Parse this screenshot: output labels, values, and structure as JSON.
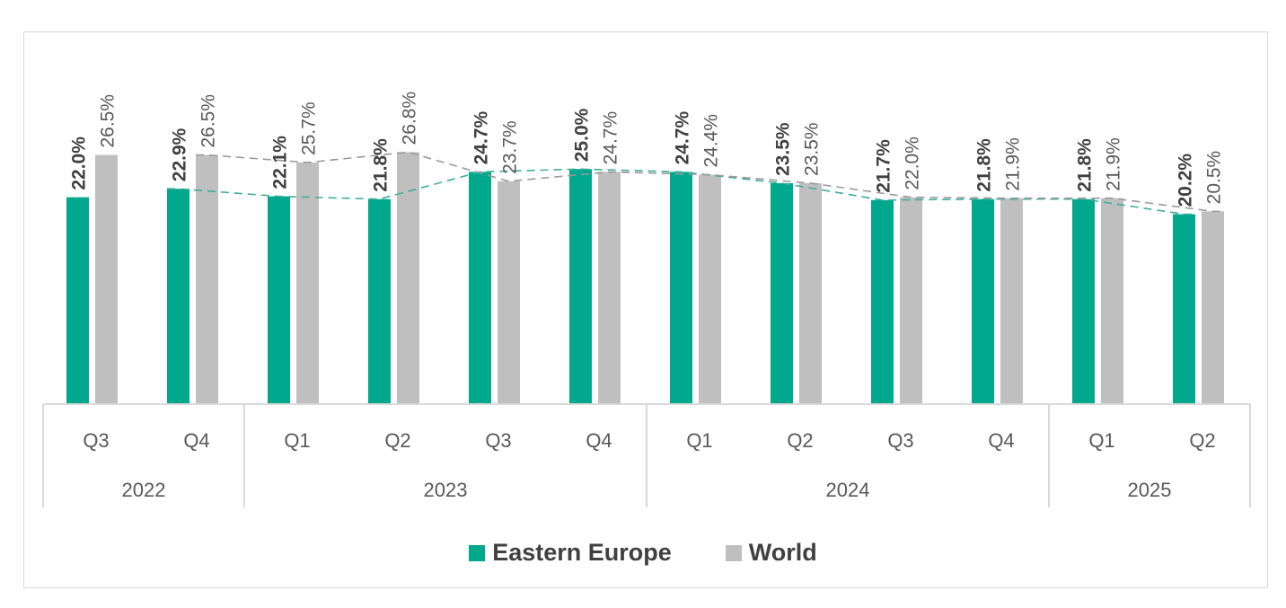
{
  "chart_data": {
    "type": "bar",
    "title": "",
    "xlabel": "",
    "ylabel": "",
    "ylim": [
      0,
      27
    ],
    "grid": false,
    "legend_position": "bottom",
    "categories": [
      "Q3",
      "Q4",
      "Q1",
      "Q2",
      "Q3",
      "Q4",
      "Q1",
      "Q2",
      "Q3",
      "Q4",
      "Q1",
      "Q2"
    ],
    "year_groups": [
      {
        "label": "2022",
        "count": 2
      },
      {
        "label": "2023",
        "count": 4
      },
      {
        "label": "2024",
        "count": 4
      },
      {
        "label": "2025",
        "count": 2
      }
    ],
    "series": [
      {
        "name": "Eastern Europe",
        "color": "#00a88e",
        "values": [
          22.0,
          22.9,
          22.1,
          21.8,
          24.7,
          25.0,
          24.7,
          23.5,
          21.7,
          21.8,
          21.8,
          20.2
        ],
        "labels": [
          "22.0%",
          "22.9%",
          "22.1%",
          "21.8%",
          "24.7%",
          "25.0%",
          "24.7%",
          "23.5%",
          "21.7%",
          "21.8%",
          "21.8%",
          "20.2%"
        ]
      },
      {
        "name": "World",
        "color": "#bfbfbf",
        "values": [
          26.5,
          26.5,
          25.7,
          26.8,
          23.7,
          24.7,
          24.4,
          23.5,
          22.0,
          21.9,
          21.9,
          20.5
        ],
        "labels": [
          "26.5%",
          "26.5%",
          "25.7%",
          "26.8%",
          "23.7%",
          "24.7%",
          "24.4%",
          "23.5%",
          "22.0%",
          "21.9%",
          "21.9%",
          "20.5%"
        ]
      }
    ],
    "series_lines": {
      "style": "dashed",
      "start_index": 1
    }
  }
}
